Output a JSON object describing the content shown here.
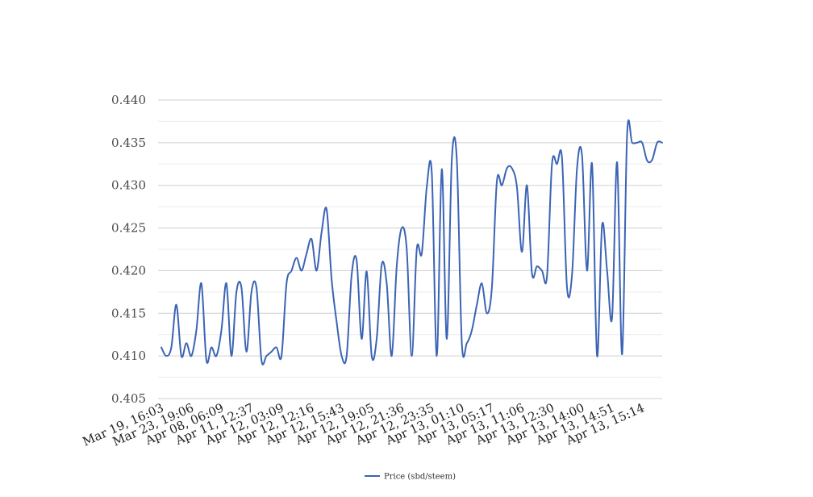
{
  "colors": {
    "series": "#3b64b4",
    "grid": "#cfcfcf",
    "grid_minor": "#ececec"
  },
  "chart_data": {
    "type": "line",
    "title": "",
    "xlabel": "",
    "ylabel": "",
    "ylim": [
      0.405,
      0.44
    ],
    "yticks": [
      0.405,
      0.41,
      0.415,
      0.42,
      0.425,
      0.43,
      0.435,
      0.44
    ],
    "ytick_labels": [
      "0.405",
      "0.410",
      "0.415",
      "0.420",
      "0.425",
      "0.430",
      "0.435",
      "0.440"
    ],
    "grid": true,
    "legend_position": "bottom-center",
    "xtick_labels": [
      "Mar 19, 16:03",
      "Mar 23, 19:06",
      "Apr 08, 06:09",
      "Apr 11, 12:37",
      "Apr 12, 03:09",
      "Apr 12, 12:16",
      "Apr 12, 15:43",
      "Apr 12, 19:05",
      "Apr 12, 21:36",
      "Apr 12, 23:35",
      "Apr 13, 01:10",
      "Apr 13, 05:17",
      "Apr 13, 11:06",
      "Apr 13, 12:30",
      "Apr 13, 14:00",
      "Apr 13, 14:51",
      "Apr 13, 15:14"
    ],
    "xtick_positions": [
      0,
      6,
      12,
      18,
      24,
      30,
      36,
      42,
      48,
      54,
      60,
      66,
      72,
      78,
      84,
      90,
      96
    ],
    "series": [
      {
        "name": "Price (sbd/steem)",
        "color": "#3b64b4",
        "values": [
          0.411,
          0.41,
          0.411,
          0.416,
          0.41,
          0.4115,
          0.41,
          0.413,
          0.4185,
          0.4095,
          0.411,
          0.41,
          0.413,
          0.4185,
          0.41,
          0.4175,
          0.418,
          0.4105,
          0.4175,
          0.418,
          0.4095,
          0.41,
          0.4105,
          0.411,
          0.41,
          0.4185,
          0.42,
          0.4215,
          0.42,
          0.422,
          0.4237,
          0.42,
          0.4245,
          0.4272,
          0.419,
          0.414,
          0.41,
          0.41,
          0.4195,
          0.4212,
          0.412,
          0.4199,
          0.41,
          0.412,
          0.4207,
          0.4185,
          0.41,
          0.4205,
          0.425,
          0.4225,
          0.41,
          0.4225,
          0.422,
          0.4298,
          0.4315,
          0.41,
          0.4319,
          0.412,
          0.433,
          0.433,
          0.4115,
          0.4115,
          0.413,
          0.416,
          0.4185,
          0.415,
          0.418,
          0.4305,
          0.43,
          0.432,
          0.432,
          0.4298,
          0.4222,
          0.43,
          0.4197,
          0.4205,
          0.42,
          0.4193,
          0.4325,
          0.4325,
          0.4332,
          0.418,
          0.4195,
          0.432,
          0.4335,
          0.42,
          0.4325,
          0.41,
          0.4253,
          0.42,
          0.4145,
          0.4327,
          0.4102,
          0.436,
          0.435,
          0.435,
          0.435,
          0.4329,
          0.433,
          0.435,
          0.435
        ]
      }
    ]
  }
}
